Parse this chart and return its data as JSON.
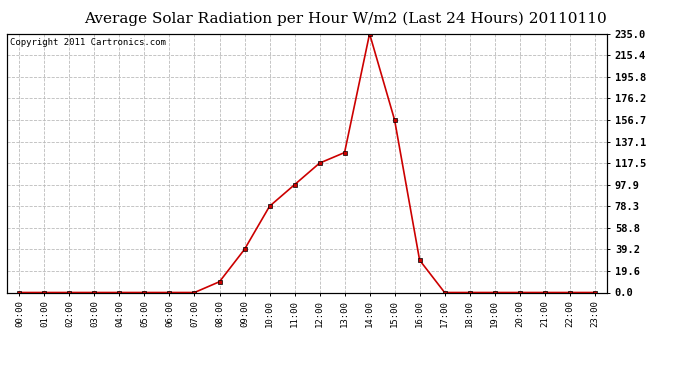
{
  "title": "Average Solar Radiation per Hour W/m2 (Last 24 Hours) 20110110",
  "copyright_text": "Copyright 2011 Cartronics.com",
  "hours": [
    "00:00",
    "01:00",
    "02:00",
    "03:00",
    "04:00",
    "05:00",
    "06:00",
    "07:00",
    "08:00",
    "09:00",
    "10:00",
    "11:00",
    "12:00",
    "13:00",
    "14:00",
    "15:00",
    "16:00",
    "17:00",
    "18:00",
    "19:00",
    "20:00",
    "21:00",
    "22:00",
    "23:00"
  ],
  "values": [
    0.0,
    0.0,
    0.0,
    0.0,
    0.0,
    0.0,
    0.0,
    0.0,
    9.8,
    39.2,
    78.3,
    97.9,
    117.5,
    127.1,
    235.0,
    156.7,
    29.4,
    0.0,
    0.0,
    0.0,
    0.0,
    0.0,
    0.0,
    0.0
  ],
  "line_color": "#cc0000",
  "marker_color": "#000000",
  "bg_color": "#ffffff",
  "grid_color": "#bbbbbb",
  "title_fontsize": 11,
  "copyright_fontsize": 6.5,
  "ytick_labels": [
    "0.0",
    "19.6",
    "39.2",
    "58.8",
    "78.3",
    "97.9",
    "117.5",
    "137.1",
    "156.7",
    "176.2",
    "195.8",
    "215.4",
    "235.0"
  ],
  "ytick_values": [
    0.0,
    19.6,
    39.2,
    58.8,
    78.3,
    97.9,
    117.5,
    137.1,
    156.7,
    176.2,
    195.8,
    215.4,
    235.0
  ],
  "ymax": 235.0,
  "ymin": 0.0
}
